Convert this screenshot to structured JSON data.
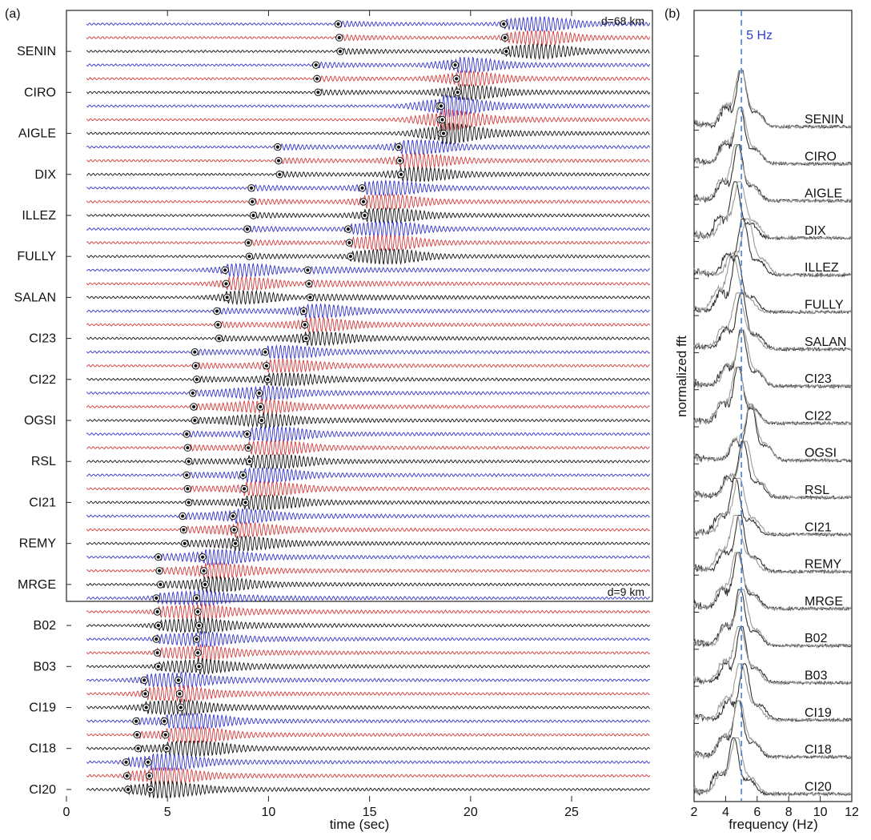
{
  "chart_data": [
    {
      "type": "line",
      "panel_label": "(a)",
      "xlabel": "time (sec)",
      "xlim": [
        0,
        29
      ],
      "x_ticks": [
        0,
        5,
        10,
        15,
        20,
        25
      ],
      "annotation_top": "d=68 km",
      "annotation_bottom": "d=9 km",
      "component_colors": [
        "#3333cc",
        "#d43a3a",
        "#111111"
      ],
      "stations": [
        {
          "name": "SENIN",
          "p": 13.5,
          "s": 21.7,
          "amp": 0.55,
          "wave_start": 1.0,
          "burst": 23.5
        },
        {
          "name": "CIRO",
          "p": 12.4,
          "s": 19.3,
          "amp": 0.55,
          "wave_start": 1.0,
          "burst": 19.8
        },
        {
          "name": "AIGLE",
          "p": 18.5,
          "s": 18.6,
          "amp": 0.7,
          "wave_start": 1.0,
          "burst": 18.8
        },
        {
          "name": "DIX",
          "p": 10.5,
          "s": 16.5,
          "amp": 0.5,
          "wave_start": 1.0,
          "burst": 17.5
        },
        {
          "name": "ILLEZ",
          "p": 9.2,
          "s": 14.7,
          "amp": 0.55,
          "wave_start": 1.0,
          "burst": 16.0
        },
        {
          "name": "FULLY",
          "p": 9.0,
          "s": 14.0,
          "amp": 0.6,
          "wave_start": 1.0,
          "burst": 16.0
        },
        {
          "name": "SALAN",
          "p": 7.9,
          "s": 12.0,
          "amp": 0.5,
          "wave_start": 1.0,
          "burst": 9.0
        },
        {
          "name": "CI23",
          "p": 7.5,
          "s": 11.8,
          "amp": 0.45,
          "wave_start": 1.0,
          "burst": 12.5
        },
        {
          "name": "CI22",
          "p": 6.4,
          "s": 9.9,
          "amp": 0.4,
          "wave_start": 1.0,
          "burst": 11.0
        },
        {
          "name": "OGSI",
          "p": 6.3,
          "s": 9.6,
          "amp": 0.5,
          "wave_start": 1.0,
          "burst": 9.5
        },
        {
          "name": "RSL",
          "p": 6.0,
          "s": 9.0,
          "amp": 0.5,
          "wave_start": 1.0,
          "burst": 10.5
        },
        {
          "name": "CI21",
          "p": 6.0,
          "s": 8.8,
          "amp": 0.5,
          "wave_start": 1.0,
          "burst": 10.0
        },
        {
          "name": "REMY",
          "p": 5.8,
          "s": 8.3,
          "amp": 0.45,
          "wave_start": 1.0,
          "burst": 8.8
        },
        {
          "name": "MRGE",
          "p": 4.6,
          "s": 6.8,
          "amp": 0.5,
          "wave_start": 1.0,
          "burst": 7.5
        },
        {
          "name": "B02",
          "p": 4.5,
          "s": 6.5,
          "amp": 0.55,
          "wave_start": 1.0,
          "burst": 6.2
        },
        {
          "name": "B03",
          "p": 4.5,
          "s": 6.5,
          "amp": 0.5,
          "wave_start": 1.0,
          "burst": 6.4
        },
        {
          "name": "CI19",
          "p": 3.9,
          "s": 5.6,
          "amp": 0.55,
          "wave_start": 1.0,
          "burst": 5.2
        },
        {
          "name": "CI18",
          "p": 3.5,
          "s": 4.9,
          "amp": 0.55,
          "wave_start": 1.0,
          "burst": 6.5
        },
        {
          "name": "CI20",
          "p": 3.0,
          "s": 4.1,
          "amp": 0.55,
          "wave_start": 1.0,
          "burst": 5.0
        }
      ]
    },
    {
      "type": "line",
      "panel_label": "(b)",
      "xlabel": "frequency (Hz)",
      "ylabel": "normalized fft",
      "xlim": [
        2,
        12
      ],
      "x_ticks": [
        2,
        4,
        6,
        8,
        10,
        12
      ],
      "reference_line": {
        "x": 5,
        "label": "5 Hz"
      },
      "series_colors": [
        "#333333",
        "#999999"
      ],
      "stations": [
        {
          "name": "SENIN",
          "peak": 5.0
        },
        {
          "name": "CIRO",
          "peak": 4.9
        },
        {
          "name": "AIGLE",
          "peak": 4.8
        },
        {
          "name": "DIX",
          "peak": 4.6
        },
        {
          "name": "ILLEZ",
          "peak": 5.1
        },
        {
          "name": "FULLY",
          "peak": 4.7
        },
        {
          "name": "SALAN",
          "peak": 5.0
        },
        {
          "name": "CI23",
          "peak": 5.0
        },
        {
          "name": "CI22",
          "peak": 4.8
        },
        {
          "name": "OGSI",
          "peak": 5.6
        },
        {
          "name": "RSL",
          "peak": 5.1
        },
        {
          "name": "CI21",
          "peak": 4.6
        },
        {
          "name": "REMY",
          "peak": 4.9
        },
        {
          "name": "MRGE",
          "peak": 4.8
        },
        {
          "name": "B02",
          "peak": 4.9
        },
        {
          "name": "B03",
          "peak": 5.0
        },
        {
          "name": "CI19",
          "peak": 5.2
        },
        {
          "name": "CI18",
          "peak": 4.8
        },
        {
          "name": "CI20",
          "peak": 4.5
        }
      ]
    }
  ]
}
